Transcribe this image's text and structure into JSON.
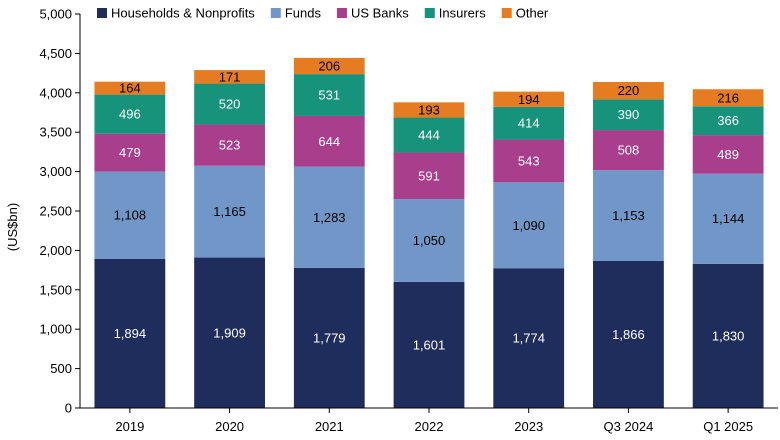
{
  "chart_data": {
    "type": "bar",
    "stacked": true,
    "title": "",
    "xlabel": "",
    "ylabel": "(US$bn)",
    "ylim": [
      0,
      5000
    ],
    "yticks": [
      0,
      500,
      1000,
      1500,
      2000,
      2500,
      3000,
      3500,
      4000,
      4500,
      5000
    ],
    "ytick_labels": [
      "0",
      "500",
      "1,000",
      "1,500",
      "2,000",
      "2,500",
      "3,000",
      "3,500",
      "4,000",
      "4,500",
      "5,000"
    ],
    "grid": false,
    "legend_position": "top",
    "categories": [
      "2019",
      "2020",
      "2021",
      "2022",
      "2023",
      "Q3 2024",
      "Q1 2025"
    ],
    "series": [
      {
        "name": "Households & Nonprofits",
        "color": "#1f2d5c",
        "label_color": "#ffffff",
        "values": [
          1894,
          1909,
          1779,
          1601,
          1774,
          1866,
          1830
        ],
        "labels": [
          "1,894",
          "1,909",
          "1,779",
          "1,601",
          "1,774",
          "1,866",
          "1,830"
        ]
      },
      {
        "name": "Funds",
        "color": "#7197c8",
        "label_color": "#000000",
        "values": [
          1108,
          1165,
          1283,
          1050,
          1090,
          1153,
          1144
        ],
        "labels": [
          "1,108",
          "1,165",
          "1,283",
          "1,050",
          "1,090",
          "1,153",
          "1,144"
        ]
      },
      {
        "name": "US Banks",
        "color": "#a83e8c",
        "label_color": "#ffffff",
        "values": [
          479,
          523,
          644,
          591,
          543,
          508,
          489
        ],
        "labels": [
          "479",
          "523",
          "644",
          "591",
          "543",
          "508",
          "489"
        ]
      },
      {
        "name": "Insurers",
        "color": "#17937c",
        "label_color": "#ffffff",
        "values": [
          496,
          520,
          531,
          444,
          414,
          390,
          366
        ],
        "labels": [
          "496",
          "520",
          "531",
          "444",
          "414",
          "390",
          "366"
        ]
      },
      {
        "name": "Other",
        "color": "#e67c22",
        "label_color": "#000000",
        "values": [
          164,
          171,
          206,
          193,
          194,
          220,
          216
        ],
        "labels": [
          "164",
          "171",
          "206",
          "193",
          "194",
          "220",
          "216"
        ]
      }
    ]
  }
}
